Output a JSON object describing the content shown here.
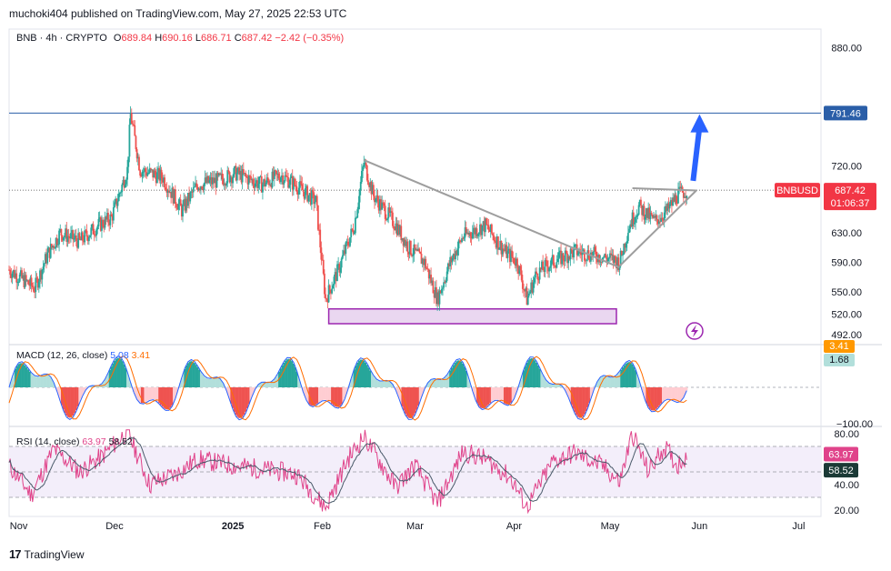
{
  "published": "muchoki404 published on TradingView.com, May 27, 2025 22:53 UTC",
  "brand": "TradingView",
  "header": {
    "symbol_line": "BNB · 4h · CRYPTO",
    "open_label": "O",
    "open": "689.84",
    "high_label": "H",
    "high": "690.16",
    "low_label": "L",
    "low": "686.71",
    "close_label": "C",
    "close": "687.42",
    "change": "−2.42 (−0.35%)"
  },
  "colors": {
    "up": "#26a69a",
    "down": "#ef5350",
    "accent": "#2962ff",
    "price_tag": "#f23645",
    "target_line": "#2a5ea8",
    "box_fill": "#ead7f0",
    "box_border": "#9c27b0",
    "rsi": "#e0438a",
    "rsi_ma": "#4a5a6a",
    "macd_line": "#2962ff",
    "signal_line": "#ff6d00"
  },
  "chart_data": [
    {
      "type": "candlestick",
      "title": "BNB · 4h · CRYPTO",
      "symbol": "BNBUSD",
      "ylim": [
        480,
        905
      ],
      "y_ticks": [
        880,
        720,
        630,
        590,
        550,
        520,
        492
      ],
      "x_labels": [
        "Nov",
        "Dec",
        "2025",
        "Feb",
        "Mar",
        "Apr",
        "May",
        "Jun",
        "Jul"
      ],
      "x_dates": [
        "2024-10-30",
        "2024-11-29",
        "2025-01-05",
        "2025-02-02",
        "2025-03-03",
        "2025-04-03",
        "2025-05-03",
        "2025-05-31",
        "2025-07-01"
      ],
      "x_start": "2024-10-27",
      "x_end": "2025-07-08",
      "last_date": "2025-05-27",
      "close_path": [
        [
          "2024-10-27",
          580
        ],
        [
          "2024-11-04",
          555
        ],
        [
          "2024-11-08",
          600
        ],
        [
          "2024-11-12",
          630
        ],
        [
          "2024-11-18",
          618
        ],
        [
          "2024-11-24",
          640
        ],
        [
          "2024-11-28",
          650
        ],
        [
          "2024-12-03",
          715
        ],
        [
          "2024-12-04",
          790
        ],
        [
          "2024-12-07",
          715
        ],
        [
          "2024-12-14",
          705
        ],
        [
          "2024-12-20",
          660
        ],
        [
          "2024-12-25",
          695
        ],
        [
          "2024-12-31",
          700
        ],
        [
          "2025-01-06",
          710
        ],
        [
          "2025-01-14",
          695
        ],
        [
          "2025-01-20",
          708
        ],
        [
          "2025-01-26",
          690
        ],
        [
          "2025-01-31",
          672
        ],
        [
          "2025-02-03",
          540
        ],
        [
          "2025-02-07",
          580
        ],
        [
          "2025-02-12",
          640
        ],
        [
          "2025-02-15",
          725
        ],
        [
          "2025-02-18",
          680
        ],
        [
          "2025-02-25",
          640
        ],
        [
          "2025-03-01",
          610
        ],
        [
          "2025-03-06",
          590
        ],
        [
          "2025-03-10",
          540
        ],
        [
          "2025-03-14",
          590
        ],
        [
          "2025-03-18",
          625
        ],
        [
          "2025-03-25",
          640
        ],
        [
          "2025-03-31",
          605
        ],
        [
          "2025-04-04",
          590
        ],
        [
          "2025-04-07",
          540
        ],
        [
          "2025-04-10",
          575
        ],
        [
          "2025-04-15",
          590
        ],
        [
          "2025-04-22",
          605
        ],
        [
          "2025-04-28",
          600
        ],
        [
          "2025-05-03",
          595
        ],
        [
          "2025-05-06",
          590
        ],
        [
          "2025-05-09",
          640
        ],
        [
          "2025-05-12",
          665
        ],
        [
          "2025-05-17",
          645
        ],
        [
          "2025-05-21",
          660
        ],
        [
          "2025-05-24",
          680
        ],
        [
          "2025-05-27",
          687.42
        ]
      ],
      "last_price_line": 687.42,
      "target_line": 791.46,
      "price_labels": {
        "target": "791.46",
        "symbol": "BNBUSD",
        "last": "687.42",
        "countdown": "01:06:37"
      },
      "annotations": {
        "descending_trendline": [
          [
            "2025-02-15",
            728
          ],
          [
            "2025-05-06",
            583
          ]
        ],
        "ascending_trendline": [
          [
            "2025-05-06",
            585
          ],
          [
            "2025-05-30",
            687
          ]
        ],
        "resistance_segment": [
          [
            "2025-05-10",
            690
          ],
          [
            "2025-05-30",
            687
          ]
        ],
        "support_box": {
          "date_from": "2025-02-04",
          "date_to": "2025-05-05",
          "price_from": 507,
          "price_to": 527
        },
        "arrow_from": [
          "2025-05-29",
          700
        ],
        "arrow_to": [
          "2025-05-31",
          790
        ]
      }
    },
    {
      "type": "histogram",
      "title": "MACD (12, 26, close)",
      "legend": [
        "MACD (12, 26, close)",
        "5.08",
        "3.41"
      ],
      "tick_labels": [
        "3.41",
        "1.68",
        "−100.00"
      ],
      "value_labels": {
        "signal": "3.41",
        "hist": "1.68"
      }
    },
    {
      "type": "line",
      "title": "RSI (14, close)",
      "legend": [
        "RSI (14, close)",
        "63.97",
        "58.52"
      ],
      "ylim": [
        15,
        85
      ],
      "y_ticks": [
        80.0,
        40.0,
        20.0
      ],
      "bands": [
        70,
        50,
        30
      ],
      "tick_labels": [
        "80.00",
        "40.00",
        "20.00"
      ],
      "value_labels": {
        "rsi": "63.97",
        "rsi_ma": "58.52"
      },
      "rsi_path": [
        [
          "2024-10-27",
          55
        ],
        [
          "2024-11-03",
          32
        ],
        [
          "2024-11-10",
          68
        ],
        [
          "2024-11-18",
          50
        ],
        [
          "2024-11-25",
          62
        ],
        [
          "2024-12-03",
          82
        ],
        [
          "2024-12-10",
          40
        ],
        [
          "2024-12-18",
          48
        ],
        [
          "2024-12-25",
          60
        ],
        [
          "2025-01-05",
          55
        ],
        [
          "2025-01-15",
          52
        ],
        [
          "2025-01-25",
          48
        ],
        [
          "2025-02-03",
          22
        ],
        [
          "2025-02-10",
          60
        ],
        [
          "2025-02-15",
          78
        ],
        [
          "2025-02-25",
          38
        ],
        [
          "2025-03-03",
          55
        ],
        [
          "2025-03-10",
          25
        ],
        [
          "2025-03-18",
          66
        ],
        [
          "2025-03-25",
          60
        ],
        [
          "2025-04-02",
          45
        ],
        [
          "2025-04-07",
          22
        ],
        [
          "2025-04-15",
          58
        ],
        [
          "2025-04-22",
          65
        ],
        [
          "2025-05-01",
          54
        ],
        [
          "2025-05-06",
          42
        ],
        [
          "2025-05-10",
          80
        ],
        [
          "2025-05-15",
          50
        ],
        [
          "2025-05-20",
          70
        ],
        [
          "2025-05-24",
          55
        ],
        [
          "2025-05-27",
          63.97
        ]
      ]
    }
  ]
}
